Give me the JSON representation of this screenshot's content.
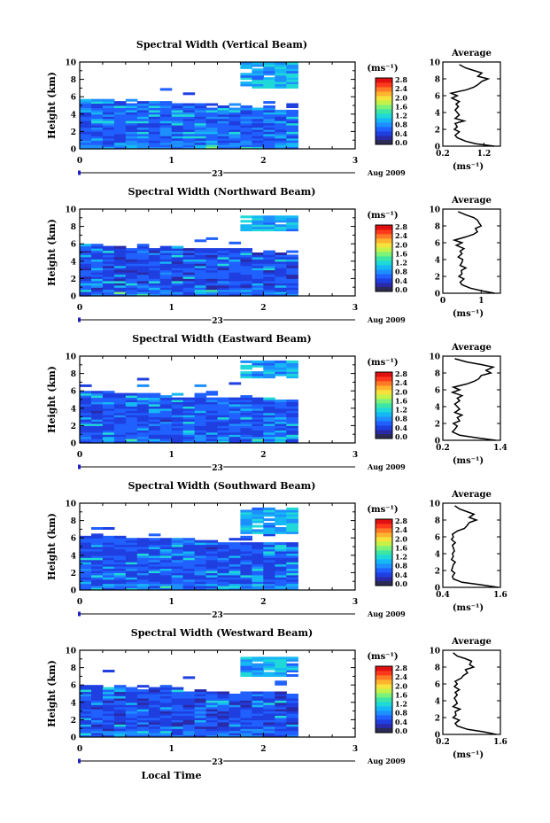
{
  "figure": {
    "x_label_bottom": "Local Time",
    "date_day": "23",
    "date_month_year": "Aug 2009",
    "colorbar_unit": "(ms⁻¹)",
    "profile_title": "Average",
    "profile_unit": "(ms⁻¹)"
  },
  "colors": {
    "colormap": [
      "#2b2b66",
      "#2a2aa8",
      "#1f3fe0",
      "#2060ff",
      "#1d8fff",
      "#15b8f5",
      "#1fd9d9",
      "#3ee6a6",
      "#7df27a",
      "#c4f24a",
      "#f5e23c",
      "#ffb42f",
      "#ff7a26",
      "#ff3a1c",
      "#e01010"
    ]
  },
  "chart_data": [
    {
      "type": "heatmap",
      "title": "Spectral Width (Vertical Beam)",
      "ylabel": "Height (km)",
      "xlabel": "Local Time",
      "xlim": [
        0,
        3
      ],
      "ylim": [
        0,
        10
      ],
      "x_ticks": [
        "0",
        "1",
        "2",
        "3"
      ],
      "y_ticks": [
        "0",
        "2",
        "4",
        "6",
        "8",
        "10"
      ],
      "colorbar": {
        "range": [
          0.0,
          2.8
        ],
        "ticks": [
          "2.8",
          "2.4",
          "2.0",
          "1.6",
          "1.2",
          "0.8",
          "0.4",
          "0.0"
        ]
      },
      "data_extent_hours": [
        0,
        2.35
      ],
      "cloud_top_km": 5.5,
      "upper_layer_km": [
        6.8,
        9.8
      ],
      "typical_width_ms": 0.6,
      "profile": {
        "title": "Average",
        "xlabel": "(ms⁻¹)",
        "xlim": [
          0.2,
          1.6
        ],
        "x_ticks": [
          "0.2",
          "1.2"
        ],
        "ylim": [
          0,
          10
        ],
        "y_ticks": [
          "0",
          "2",
          "4",
          "6",
          "8",
          "10"
        ],
        "height_km": [
          0,
          0.3,
          0.6,
          1,
          1.3,
          1.7,
          2,
          2.3,
          2.7,
          3,
          3.3,
          3.7,
          4,
          4.3,
          4.7,
          5,
          5.3,
          5.7,
          6,
          6.3,
          6.7,
          7,
          7.3,
          7.7,
          8,
          8.3,
          8.7,
          9,
          9.3,
          9.7
        ],
        "width_ms": [
          1.45,
          1.0,
          0.75,
          0.55,
          0.5,
          0.6,
          0.48,
          0.55,
          0.5,
          0.72,
          0.5,
          0.6,
          0.55,
          0.5,
          0.58,
          0.52,
          0.6,
          0.42,
          0.55,
          0.4,
          0.78,
          0.95,
          1.05,
          1.15,
          1.3,
          1.05,
          1.15,
          0.95,
          0.75,
          0.6
        ]
      }
    },
    {
      "type": "heatmap",
      "title": "Spectral Width (Northward Beam)",
      "ylabel": "Height (km)",
      "xlabel": "Local Time",
      "xlim": [
        0,
        3
      ],
      "ylim": [
        0,
        10
      ],
      "x_ticks": [
        "0",
        "1",
        "2",
        "3"
      ],
      "y_ticks": [
        "0",
        "2",
        "4",
        "6",
        "8",
        "10"
      ],
      "colorbar": {
        "range": [
          0.0,
          2.8
        ],
        "ticks": [
          "2.8",
          "2.4",
          "2.0",
          "1.6",
          "1.2",
          "0.8",
          "0.4",
          "0.0"
        ]
      },
      "data_extent_hours": [
        0,
        2.35
      ],
      "cloud_top_km": 5.8,
      "upper_layer_km": [
        7.5,
        9.2
      ],
      "typical_width_ms": 0.5,
      "profile": {
        "title": "Average",
        "xlabel": "(ms⁻¹)",
        "xlim": [
          0,
          1.5
        ],
        "x_ticks": [
          "0",
          "1"
        ],
        "ylim": [
          0,
          10
        ],
        "y_ticks": [
          "0",
          "2",
          "4",
          "6",
          "8",
          "10"
        ],
        "height_km": [
          0,
          0.3,
          0.6,
          1,
          1.3,
          1.7,
          2,
          2.3,
          2.7,
          3,
          3.3,
          3.7,
          4,
          4.3,
          4.7,
          5,
          5.3,
          5.7,
          6,
          6.3,
          6.7,
          7,
          7.3,
          7.7,
          8,
          8.3,
          8.7,
          9,
          9.3,
          9.7
        ],
        "width_ms": [
          1.35,
          1.0,
          0.72,
          0.5,
          0.45,
          0.55,
          0.42,
          0.5,
          0.48,
          0.6,
          0.45,
          0.5,
          0.52,
          0.4,
          0.5,
          0.45,
          0.55,
          0.35,
          0.5,
          0.3,
          0.6,
          0.8,
          0.9,
          0.85,
          1.0,
          0.95,
          0.9,
          0.8,
          0.6,
          0.4
        ]
      }
    },
    {
      "type": "heatmap",
      "title": "Spectral Width (Eastward Beam)",
      "ylabel": "Height (km)",
      "xlabel": "Local Time",
      "xlim": [
        0,
        3
      ],
      "ylim": [
        0,
        10
      ],
      "x_ticks": [
        "0",
        "1",
        "2",
        "3"
      ],
      "y_ticks": [
        "0",
        "2",
        "4",
        "6",
        "8",
        "10"
      ],
      "colorbar": {
        "range": [
          0.0,
          2.8
        ],
        "ticks": [
          "2.8",
          "2.4",
          "2.0",
          "1.6",
          "1.2",
          "0.8",
          "0.4",
          "0.0"
        ]
      },
      "data_extent_hours": [
        0,
        2.35
      ],
      "cloud_top_km": 5.8,
      "upper_layer_km": [
        7.3,
        9.3
      ],
      "typical_width_ms": 0.55,
      "profile": {
        "title": "Average",
        "xlabel": "(ms⁻¹)",
        "xlim": [
          0.2,
          1.4
        ],
        "x_ticks": [
          "0.2",
          "1.4"
        ],
        "ylim": [
          0,
          10
        ],
        "y_ticks": [
          "0",
          "2",
          "4",
          "6",
          "8",
          "10"
        ],
        "height_km": [
          0,
          0.3,
          0.6,
          1,
          1.3,
          1.7,
          2,
          2.3,
          2.7,
          3,
          3.3,
          3.7,
          4,
          4.3,
          4.7,
          5,
          5.3,
          5.7,
          6,
          6.3,
          6.7,
          7,
          7.3,
          7.7,
          8,
          8.3,
          8.7,
          9,
          9.3,
          9.7
        ],
        "width_ms": [
          1.3,
          0.9,
          0.55,
          0.4,
          0.45,
          0.5,
          0.42,
          0.55,
          0.5,
          0.6,
          0.45,
          0.55,
          0.5,
          0.45,
          0.55,
          0.5,
          0.6,
          0.4,
          0.55,
          0.42,
          0.7,
          0.85,
          0.95,
          1.0,
          1.2,
          1.1,
          1.25,
          1.0,
          0.7,
          0.45
        ]
      }
    },
    {
      "type": "heatmap",
      "title": "Spectral Width (Southward Beam)",
      "ylabel": "Height (km)",
      "xlabel": "Local Time",
      "xlim": [
        0,
        3
      ],
      "ylim": [
        0,
        10
      ],
      "x_ticks": [
        "0",
        "1",
        "2",
        "3"
      ],
      "y_ticks": [
        "0",
        "2",
        "4",
        "6",
        "8",
        "10"
      ],
      "colorbar": {
        "range": [
          0.0,
          2.8
        ],
        "ticks": [
          "2.8",
          "2.4",
          "2.0",
          "1.6",
          "1.2",
          "0.8",
          "0.4",
          "0.0"
        ]
      },
      "data_extent_hours": [
        0,
        2.35
      ],
      "cloud_top_km": 6.2,
      "upper_layer_km": [
        6.5,
        9.5
      ],
      "typical_width_ms": 0.55,
      "profile": {
        "title": "Average",
        "xlabel": "(ms⁻¹)",
        "xlim": [
          0.4,
          1.6
        ],
        "x_ticks": [
          "0.4",
          "1.6"
        ],
        "ylim": [
          0,
          10
        ],
        "y_ticks": [
          "0",
          "2",
          "4",
          "6",
          "8",
          "10"
        ],
        "height_km": [
          0,
          0.3,
          0.6,
          1,
          1.3,
          1.7,
          2,
          2.3,
          2.7,
          3,
          3.3,
          3.7,
          4,
          4.3,
          4.7,
          5,
          5.3,
          5.7,
          6,
          6.3,
          6.7,
          7,
          7.3,
          7.7,
          8,
          8.3,
          8.7,
          9,
          9.3,
          9.7
        ],
        "width_ms": [
          1.55,
          1.2,
          0.8,
          0.62,
          0.6,
          0.65,
          0.58,
          0.6,
          0.62,
          0.66,
          0.58,
          0.62,
          0.6,
          0.64,
          0.62,
          0.6,
          0.66,
          0.58,
          0.62,
          0.6,
          0.7,
          0.85,
          0.9,
          0.95,
          1.1,
          0.95,
          1.05,
          0.9,
          0.75,
          0.65
        ]
      }
    },
    {
      "type": "heatmap",
      "title": "Spectral Width (Westward Beam)",
      "ylabel": "Height (km)",
      "xlabel": "Local Time",
      "xlim": [
        0,
        3
      ],
      "ylim": [
        0,
        10
      ],
      "x_ticks": [
        "0",
        "1",
        "2",
        "3"
      ],
      "y_ticks": [
        "0",
        "2",
        "4",
        "6",
        "8",
        "10"
      ],
      "colorbar": {
        "range": [
          0.0,
          2.8
        ],
        "ticks": [
          "2.8",
          "2.4",
          "2.0",
          "1.6",
          "1.2",
          "0.8",
          "0.4",
          "0.0"
        ]
      },
      "data_extent_hours": [
        0,
        2.35
      ],
      "cloud_top_km": 5.8,
      "upper_layer_km": [
        6.8,
        9.2
      ],
      "typical_width_ms": 0.5,
      "profile": {
        "title": "Average",
        "xlabel": "(ms⁻¹)",
        "xlim": [
          0.2,
          1.6
        ],
        "x_ticks": [
          "0.2",
          "1.6"
        ],
        "ylim": [
          0,
          10
        ],
        "y_ticks": [
          "0",
          "2",
          "4",
          "6",
          "8",
          "10"
        ],
        "height_km": [
          0,
          0.3,
          0.6,
          1,
          1.3,
          1.7,
          2,
          2.3,
          2.7,
          3,
          3.3,
          3.7,
          4,
          4.3,
          4.7,
          5,
          5.3,
          5.7,
          6,
          6.3,
          6.7,
          7,
          7.3,
          7.7,
          8,
          8.3,
          8.7,
          9,
          9.3,
          9.7
        ],
        "width_ms": [
          1.5,
          1.2,
          0.8,
          0.55,
          0.5,
          0.6,
          0.45,
          0.52,
          0.5,
          0.62,
          0.45,
          0.55,
          0.52,
          0.48,
          0.55,
          0.5,
          0.6,
          0.48,
          0.55,
          0.5,
          0.65,
          0.7,
          0.8,
          0.75,
          0.95,
          0.85,
          0.9,
          0.75,
          0.55,
          0.45
        ]
      }
    }
  ]
}
